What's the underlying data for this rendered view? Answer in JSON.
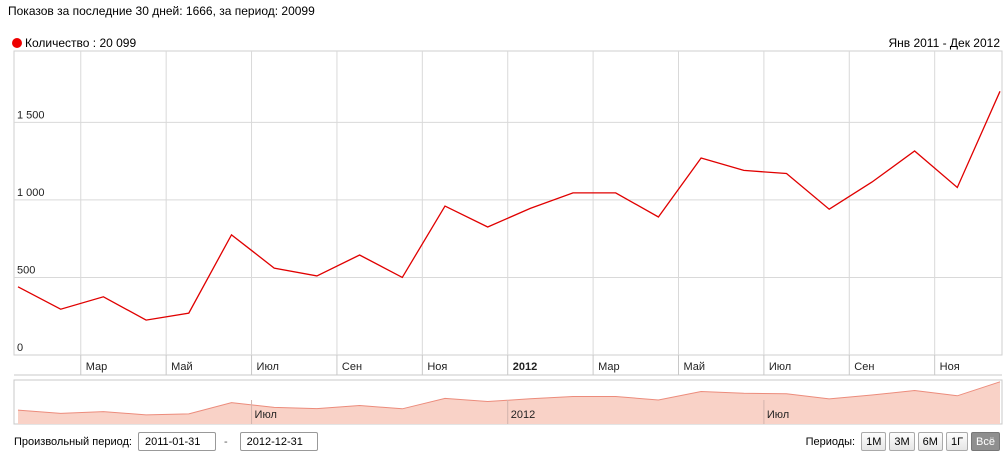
{
  "header": {
    "text": "Показов за последние 30 дней: 1666, за период: 20099"
  },
  "legend": {
    "label": "Количество : 20 099",
    "color": "#e00000"
  },
  "range_label": "Янв 2011 - Дек 2012",
  "chart_data": {
    "type": "line",
    "x": [
      "2011-01",
      "2011-02",
      "2011-03",
      "2011-04",
      "2011-05",
      "2011-06",
      "2011-07",
      "2011-08",
      "2011-09",
      "2011-10",
      "2011-11",
      "2011-12",
      "2012-01",
      "2012-02",
      "2012-03",
      "2012-04",
      "2012-05",
      "2012-06",
      "2012-07",
      "2012-08",
      "2012-09",
      "2012-10",
      "2012-11",
      "2012-12"
    ],
    "series": [
      {
        "values": [
          440,
          295,
          375,
          225,
          270,
          775,
          560,
          510,
          645,
          500,
          960,
          825,
          945,
          1045,
          1045,
          890,
          1270,
          1190,
          1170,
          940,
          1115,
          1315,
          1080,
          1700
        ]
      }
    ],
    "ylim": [
      0,
      1960
    ],
    "yticks": [
      0,
      500,
      1000,
      1500
    ],
    "ytick_labels": [
      "0",
      "500",
      "1 000",
      "1 500"
    ],
    "xtick_labels": [
      "Мар",
      "Май",
      "Июл",
      "Сен",
      "Ноя",
      "2012",
      "Мар",
      "Май",
      "Июл",
      "Сен",
      "Ноя"
    ],
    "navigator_labels": [
      "Июл",
      "2012",
      "Июл"
    ],
    "grid": true,
    "line_color": "#e00000",
    "area_color": "#f9d2c7"
  },
  "controls": {
    "custom_period_label": "Произвольный период:",
    "date_from": "2011-01-31",
    "date_to": "2012-12-31",
    "dash": "-",
    "periods_label": "Периоды:",
    "buttons": [
      "1М",
      "3М",
      "6М",
      "1Г",
      "Всё"
    ],
    "active": "Всё"
  }
}
